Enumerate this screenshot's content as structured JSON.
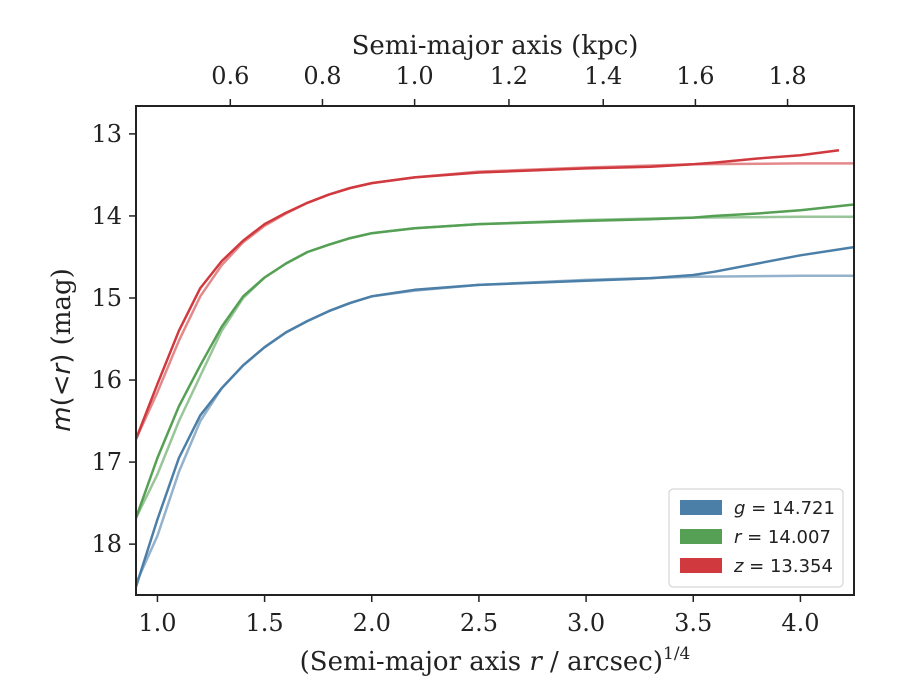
{
  "chart_data": {
    "type": "line",
    "xlabel_prefix": "(Semi-major axis ",
    "xlabel_var": "r",
    "xlabel_suffix": " / arcsec)",
    "xlabel_sup": "1/4",
    "ylabel_var_m": "m",
    "ylabel_paren_open": "(",
    "ylabel_op": "<",
    "ylabel_var_r": "r",
    "ylabel_paren_close": ")",
    "ylabel_unit": " (mag)",
    "top_xlabel": "Semi-major axis (kpc)",
    "xlim": [
      0.9,
      4.25
    ],
    "ylim": [
      18.62,
      12.66
    ],
    "y_inverted": true,
    "x_ticks": [
      1.0,
      1.5,
      2.0,
      2.5,
      3.0,
      3.5,
      4.0
    ],
    "x_tick_labels": [
      "1.0",
      "1.5",
      "2.0",
      "2.5",
      "3.0",
      "3.5",
      "4.0"
    ],
    "y_ticks": [
      13,
      14,
      15,
      16,
      17,
      18
    ],
    "y_tick_labels": [
      "13",
      "14",
      "15",
      "16",
      "17",
      "18"
    ],
    "top_ticks_kpc": [
      0.6,
      0.8,
      1.0,
      1.2,
      1.4,
      1.6,
      1.8
    ],
    "top_tick_labels": [
      "0.6",
      "0.8",
      "1.0",
      "1.2",
      "1.4",
      "1.6",
      "1.8"
    ],
    "top_tick_x_positions": [
      1.34,
      1.77,
      2.2,
      2.64,
      3.08,
      3.51,
      3.94
    ],
    "grid": false,
    "legend_position": "lower-right",
    "series": [
      {
        "name": "g",
        "legend_value": "= 14.721",
        "color": "#4c7fa8",
        "data": [
          [
            0.9,
            18.52
          ],
          [
            1.0,
            17.7
          ],
          [
            1.1,
            16.95
          ],
          [
            1.2,
            16.43
          ],
          [
            1.3,
            16.1
          ],
          [
            1.4,
            15.82
          ],
          [
            1.5,
            15.6
          ],
          [
            1.6,
            15.42
          ],
          [
            1.7,
            15.28
          ],
          [
            1.8,
            15.16
          ],
          [
            1.9,
            15.06
          ],
          [
            2.0,
            14.98
          ],
          [
            2.2,
            14.9
          ],
          [
            2.5,
            14.84
          ],
          [
            3.0,
            14.79
          ],
          [
            3.3,
            14.76
          ],
          [
            3.5,
            14.72
          ],
          [
            3.6,
            14.68
          ],
          [
            3.8,
            14.58
          ],
          [
            4.0,
            14.48
          ],
          [
            4.25,
            14.38
          ]
        ],
        "model": [
          [
            0.9,
            18.48
          ],
          [
            1.0,
            17.9
          ],
          [
            1.1,
            17.12
          ],
          [
            1.2,
            16.5
          ],
          [
            1.3,
            16.1
          ],
          [
            1.4,
            15.82
          ],
          [
            1.5,
            15.6
          ],
          [
            1.6,
            15.42
          ],
          [
            1.7,
            15.28
          ],
          [
            1.8,
            15.16
          ],
          [
            1.9,
            15.06
          ],
          [
            2.0,
            14.98
          ],
          [
            2.2,
            14.91
          ],
          [
            2.5,
            14.84
          ],
          [
            3.0,
            14.78
          ],
          [
            3.5,
            14.74
          ],
          [
            4.0,
            14.73
          ],
          [
            4.25,
            14.73
          ]
        ]
      },
      {
        "name": "r",
        "legend_value": "= 14.007",
        "color": "#55a055",
        "data": [
          [
            0.9,
            17.68
          ],
          [
            1.0,
            16.95
          ],
          [
            1.1,
            16.32
          ],
          [
            1.2,
            15.82
          ],
          [
            1.3,
            15.35
          ],
          [
            1.4,
            14.98
          ],
          [
            1.5,
            14.75
          ],
          [
            1.6,
            14.58
          ],
          [
            1.7,
            14.44
          ],
          [
            1.8,
            14.35
          ],
          [
            1.9,
            14.27
          ],
          [
            2.0,
            14.21
          ],
          [
            2.2,
            14.15
          ],
          [
            2.5,
            14.1
          ],
          [
            3.0,
            14.06
          ],
          [
            3.3,
            14.04
          ],
          [
            3.5,
            14.02
          ],
          [
            3.6,
            14.0
          ],
          [
            3.8,
            13.97
          ],
          [
            4.0,
            13.93
          ],
          [
            4.25,
            13.86
          ]
        ],
        "model": [
          [
            0.9,
            17.68
          ],
          [
            1.0,
            17.15
          ],
          [
            1.1,
            16.5
          ],
          [
            1.2,
            15.95
          ],
          [
            1.3,
            15.4
          ],
          [
            1.4,
            15.0
          ],
          [
            1.5,
            14.75
          ],
          [
            1.6,
            14.58
          ],
          [
            1.7,
            14.44
          ],
          [
            1.8,
            14.35
          ],
          [
            1.9,
            14.27
          ],
          [
            2.0,
            14.21
          ],
          [
            2.2,
            14.15
          ],
          [
            2.5,
            14.1
          ],
          [
            3.0,
            14.05
          ],
          [
            3.5,
            14.02
          ],
          [
            4.0,
            14.01
          ],
          [
            4.25,
            14.01
          ]
        ]
      },
      {
        "name": "z",
        "legend_value": "= 13.354",
        "color": "#d03a3f",
        "data": [
          [
            0.9,
            16.72
          ],
          [
            1.0,
            16.05
          ],
          [
            1.1,
            15.4
          ],
          [
            1.2,
            14.88
          ],
          [
            1.3,
            14.55
          ],
          [
            1.4,
            14.3
          ],
          [
            1.5,
            14.1
          ],
          [
            1.6,
            13.96
          ],
          [
            1.7,
            13.84
          ],
          [
            1.8,
            13.74
          ],
          [
            1.9,
            13.66
          ],
          [
            2.0,
            13.6
          ],
          [
            2.2,
            13.53
          ],
          [
            2.5,
            13.47
          ],
          [
            3.0,
            13.42
          ],
          [
            3.3,
            13.4
          ],
          [
            3.5,
            13.37
          ],
          [
            3.6,
            13.35
          ],
          [
            3.8,
            13.3
          ],
          [
            4.0,
            13.26
          ],
          [
            4.18,
            13.2
          ]
        ],
        "model": [
          [
            0.9,
            16.72
          ],
          [
            1.0,
            16.15
          ],
          [
            1.1,
            15.52
          ],
          [
            1.2,
            14.98
          ],
          [
            1.3,
            14.6
          ],
          [
            1.4,
            14.32
          ],
          [
            1.5,
            14.12
          ],
          [
            1.6,
            13.97
          ],
          [
            1.7,
            13.84
          ],
          [
            1.8,
            13.74
          ],
          [
            1.9,
            13.66
          ],
          [
            2.0,
            13.6
          ],
          [
            2.2,
            13.53
          ],
          [
            2.5,
            13.46
          ],
          [
            3.0,
            13.41
          ],
          [
            3.5,
            13.37
          ],
          [
            4.0,
            13.36
          ],
          [
            4.25,
            13.36
          ]
        ]
      }
    ]
  }
}
